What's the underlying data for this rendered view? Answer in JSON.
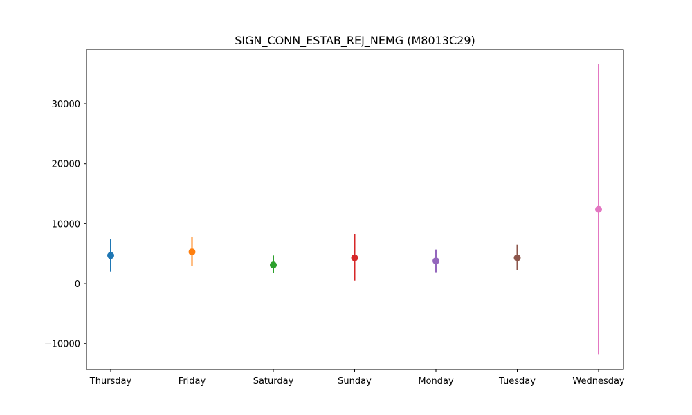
{
  "chart_data": {
    "type": "scatter",
    "title": "SIGN_CONN_ESTAB_REJ_NEMG (M8013C29)",
    "xlabel": "",
    "ylabel": "",
    "categories": [
      "Thursday",
      "Friday",
      "Saturday",
      "Sunday",
      "Monday",
      "Tuesday",
      "Wednesday"
    ],
    "points": [
      {
        "category": "Thursday",
        "mean": 4700,
        "lower": 2000,
        "upper": 7400,
        "color": "#1f77b4"
      },
      {
        "category": "Friday",
        "mean": 5300,
        "lower": 2900,
        "upper": 7800,
        "color": "#ff7f0e"
      },
      {
        "category": "Saturday",
        "mean": 3100,
        "lower": 1800,
        "upper": 4700,
        "color": "#2ca02c"
      },
      {
        "category": "Sunday",
        "mean": 4300,
        "lower": 500,
        "upper": 8200,
        "color": "#d62728"
      },
      {
        "category": "Monday",
        "mean": 3800,
        "lower": 1900,
        "upper": 5700,
        "color": "#9467bd"
      },
      {
        "category": "Tuesday",
        "mean": 4300,
        "lower": 2200,
        "upper": 6500,
        "color": "#8c564b"
      },
      {
        "category": "Wednesday",
        "mean": 12400,
        "lower": -11800,
        "upper": 36600,
        "color": "#e377c2"
      }
    ],
    "yticks": [
      -10000,
      0,
      10000,
      20000,
      30000
    ],
    "ytick_labels": [
      "−10000",
      "0",
      "10000",
      "20000",
      "30000"
    ],
    "ylim": [
      -14300,
      39000
    ],
    "grid": false,
    "legend": "none"
  }
}
